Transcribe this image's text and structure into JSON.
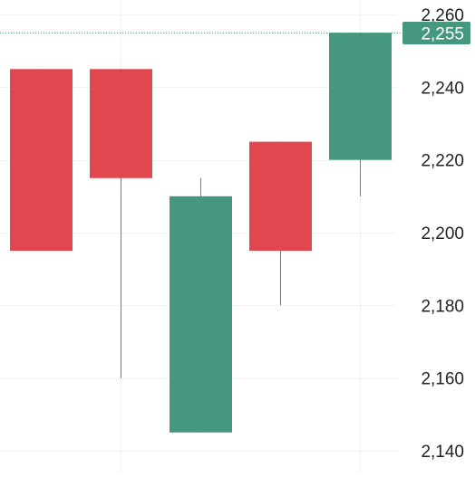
{
  "chart_data": {
    "type": "candlestick",
    "y_axis_position": "right",
    "y_ticks": [
      "2,140",
      "2,160",
      "2,180",
      "2,200",
      "2,220",
      "2,240",
      "2,260"
    ],
    "y_tick_values": [
      2140,
      2160,
      2180,
      2200,
      2220,
      2240,
      2260
    ],
    "ylim": [
      2134,
      2264
    ],
    "grid": true,
    "candles": [
      {
        "open": 2245,
        "high": 2245,
        "low": 2195,
        "close": 2195
      },
      {
        "open": 2245,
        "high": 2245,
        "low": 2160,
        "close": 2215
      },
      {
        "open": 2145,
        "high": 2215,
        "low": 2145,
        "close": 2210
      },
      {
        "open": 2225,
        "high": 2225,
        "low": 2180,
        "close": 2195
      },
      {
        "open": 2220,
        "high": 2255,
        "low": 2210,
        "close": 2255
      }
    ],
    "last_price": 2255,
    "last_price_label": "2,255",
    "colors": {
      "up": "#45977f",
      "down": "#e0474f",
      "grid": "#f0f1f3",
      "axis_text": "#1f2128",
      "price_line": "#45977f",
      "price_label_bg": "#45977f",
      "price_label_text": "#ffffff"
    }
  }
}
